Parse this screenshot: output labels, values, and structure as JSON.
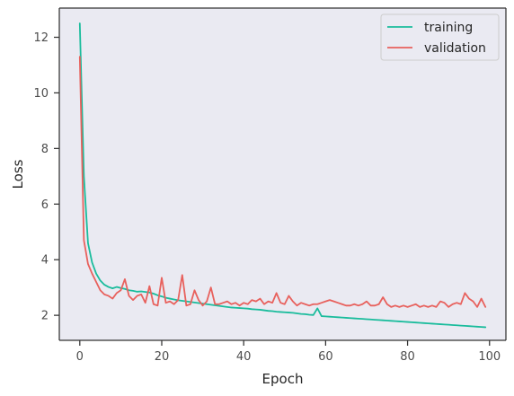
{
  "chart_data": {
    "type": "line",
    "xlabel": "Epoch",
    "ylabel": "Loss",
    "xlim": [
      -5,
      104
    ],
    "ylim": [
      1.1,
      13.05
    ],
    "xticks": [
      0,
      20,
      40,
      60,
      80,
      100
    ],
    "yticks": [
      2,
      4,
      6,
      8,
      10,
      12
    ],
    "grid": false,
    "legend_position": "top-right",
    "series": [
      {
        "name": "training",
        "color": "#1abc9c",
        "x": [
          0,
          1,
          2,
          3,
          4,
          5,
          6,
          7,
          8,
          9,
          10,
          11,
          12,
          13,
          14,
          15,
          16,
          17,
          18,
          19,
          20,
          21,
          22,
          23,
          24,
          25,
          26,
          27,
          28,
          29,
          30,
          31,
          32,
          33,
          34,
          35,
          36,
          37,
          38,
          39,
          40,
          41,
          42,
          43,
          44,
          45,
          46,
          47,
          48,
          49,
          50,
          51,
          52,
          53,
          54,
          55,
          56,
          57,
          58,
          59,
          60,
          61,
          62,
          63,
          64,
          65,
          66,
          67,
          68,
          69,
          70,
          71,
          72,
          73,
          74,
          75,
          76,
          77,
          78,
          79,
          80,
          81,
          82,
          83,
          84,
          85,
          86,
          87,
          88,
          89,
          90,
          91,
          92,
          93,
          94,
          95,
          96,
          97,
          98,
          99
        ],
        "values": [
          12.5,
          7.0,
          4.6,
          3.9,
          3.5,
          3.25,
          3.1,
          3.02,
          2.97,
          3.02,
          2.98,
          2.95,
          2.9,
          2.88,
          2.85,
          2.86,
          2.84,
          2.82,
          2.78,
          2.72,
          2.68,
          2.63,
          2.6,
          2.57,
          2.54,
          2.52,
          2.5,
          2.48,
          2.46,
          2.44,
          2.42,
          2.4,
          2.38,
          2.36,
          2.34,
          2.32,
          2.3,
          2.28,
          2.27,
          2.26,
          2.25,
          2.24,
          2.22,
          2.21,
          2.2,
          2.18,
          2.16,
          2.15,
          2.13,
          2.12,
          2.11,
          2.1,
          2.09,
          2.07,
          2.05,
          2.04,
          2.02,
          2.01,
          2.25,
          1.97,
          1.96,
          1.95,
          1.94,
          1.93,
          1.92,
          1.91,
          1.9,
          1.89,
          1.88,
          1.87,
          1.86,
          1.85,
          1.84,
          1.83,
          1.82,
          1.81,
          1.8,
          1.79,
          1.78,
          1.77,
          1.76,
          1.75,
          1.74,
          1.73,
          1.72,
          1.71,
          1.7,
          1.69,
          1.68,
          1.67,
          1.66,
          1.65,
          1.64,
          1.63,
          1.62,
          1.61,
          1.6,
          1.59,
          1.58,
          1.57
        ]
      },
      {
        "name": "validation",
        "color": "#e8615d",
        "x": [
          0,
          1,
          2,
          3,
          4,
          5,
          6,
          7,
          8,
          9,
          10,
          11,
          12,
          13,
          14,
          15,
          16,
          17,
          18,
          19,
          20,
          21,
          22,
          23,
          24,
          25,
          26,
          27,
          28,
          29,
          30,
          31,
          32,
          33,
          34,
          35,
          36,
          37,
          38,
          39,
          40,
          41,
          42,
          43,
          44,
          45,
          46,
          47,
          48,
          49,
          50,
          51,
          52,
          53,
          54,
          55,
          56,
          57,
          58,
          59,
          60,
          61,
          62,
          63,
          64,
          65,
          66,
          67,
          68,
          69,
          70,
          71,
          72,
          73,
          74,
          75,
          76,
          77,
          78,
          79,
          80,
          81,
          82,
          83,
          84,
          85,
          86,
          87,
          88,
          89,
          90,
          91,
          92,
          93,
          94,
          95,
          96,
          97,
          98,
          99
        ],
        "values": [
          11.3,
          4.7,
          3.85,
          3.5,
          3.2,
          2.9,
          2.75,
          2.7,
          2.6,
          2.8,
          2.9,
          3.3,
          2.7,
          2.55,
          2.7,
          2.75,
          2.45,
          3.05,
          2.4,
          2.35,
          3.35,
          2.45,
          2.5,
          2.4,
          2.55,
          3.45,
          2.35,
          2.4,
          2.9,
          2.55,
          2.35,
          2.5,
          3.0,
          2.4,
          2.4,
          2.45,
          2.5,
          2.4,
          2.45,
          2.35,
          2.45,
          2.4,
          2.55,
          2.5,
          2.6,
          2.4,
          2.5,
          2.45,
          2.8,
          2.45,
          2.4,
          2.7,
          2.5,
          2.35,
          2.45,
          2.4,
          2.35,
          2.4,
          2.4,
          2.45,
          2.5,
          2.55,
          2.5,
          2.45,
          2.4,
          2.35,
          2.35,
          2.4,
          2.35,
          2.4,
          2.5,
          2.35,
          2.35,
          2.4,
          2.65,
          2.4,
          2.3,
          2.35,
          2.3,
          2.35,
          2.3,
          2.35,
          2.4,
          2.3,
          2.35,
          2.3,
          2.35,
          2.3,
          2.5,
          2.45,
          2.3,
          2.4,
          2.45,
          2.4,
          2.8,
          2.6,
          2.5,
          2.3,
          2.6,
          2.3
        ]
      }
    ]
  }
}
